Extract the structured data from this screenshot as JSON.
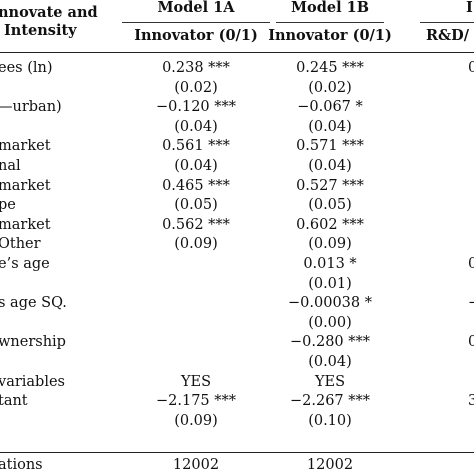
{
  "table": {
    "header_left": [
      "nnovate and",
      "Intensity"
    ],
    "columns": [
      {
        "model": "Model 1A",
        "dep": "Innovator (0/1)"
      },
      {
        "model": "Model 1B",
        "dep": "Innovator (0/1)"
      },
      {
        "model": "",
        "dep": "R&D/"
      }
    ],
    "col4_top_glyph": "I",
    "rows": [
      {
        "label": "ees (ln)",
        "m1a": "0.238 ***",
        "m1b": "0.245 ***",
        "c3": "0"
      },
      {
        "label": "",
        "m1a": "(0.02)",
        "m1b": "(0.02)",
        "c3": ""
      },
      {
        "label": "—urban)",
        "m1a": "−0.120 ***",
        "m1b": "−0.067 *",
        "c3": ""
      },
      {
        "label": "",
        "m1a": "(0.04)",
        "m1b": "(0.04)",
        "c3": ""
      },
      {
        "label": "market",
        "m1a": "0.561 ***",
        "m1b": "0.571 ***",
        "c3": ""
      },
      {
        "label": "nal",
        "m1a": "(0.04)",
        "m1b": "(0.04)",
        "c3": ""
      },
      {
        "label": "market",
        "m1a": "0.465 ***",
        "m1b": "0.527 ***",
        "c3": ""
      },
      {
        "label": "pe",
        "m1a": "(0.05)",
        "m1b": "(0.05)",
        "c3": ""
      },
      {
        "label": "market",
        "m1a": "0.562 ***",
        "m1b": "0.602 ***",
        "c3": ""
      },
      {
        "label": "Other",
        "m1a": "(0.09)",
        "m1b": "(0.09)",
        "c3": ""
      },
      {
        "label": "e’s age",
        "m1a": "",
        "m1b": "0.013 *",
        "c3": "0"
      },
      {
        "label": "",
        "m1a": "",
        "m1b": "(0.01)",
        "c3": ""
      },
      {
        "label": "s age SQ.",
        "m1a": "",
        "m1b": "−0.00038 *",
        "c3": "−"
      },
      {
        "label": "",
        "m1a": "",
        "m1b": "(0.00)",
        "c3": ""
      },
      {
        "label": "wnership",
        "m1a": "",
        "m1b": "−0.280 ***",
        "c3": "0"
      },
      {
        "label": "",
        "m1a": "",
        "m1b": "(0.04)",
        "c3": ""
      },
      {
        "label": "variables",
        "m1a": "YES",
        "m1b": "YES",
        "c3": ""
      },
      {
        "label": "tant",
        "m1a": "−2.175 ***",
        "m1b": "−2.267 ***",
        "c3": "3"
      },
      {
        "label": "",
        "m1a": "(0.09)",
        "m1b": "(0.10)",
        "c3": ""
      },
      {
        "label": "ations",
        "m1a": "12002",
        "m1b": "12002",
        "c3": ""
      }
    ]
  }
}
